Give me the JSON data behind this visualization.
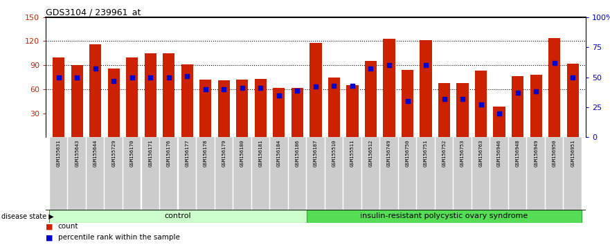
{
  "title": "GDS3104 / 239961_at",
  "samples": [
    "GSM155631",
    "GSM155643",
    "GSM155644",
    "GSM155729",
    "GSM156170",
    "GSM156171",
    "GSM156176",
    "GSM156177",
    "GSM156178",
    "GSM156179",
    "GSM156180",
    "GSM156181",
    "GSM156184",
    "GSM156186",
    "GSM156187",
    "GSM155510",
    "GSM155511",
    "GSM156512",
    "GSM156749",
    "GSM156750",
    "GSM156751",
    "GSM156752",
    "GSM156753",
    "GSM156763",
    "GSM156946",
    "GSM156948",
    "GSM156949",
    "GSM156950",
    "GSM156951"
  ],
  "counts": [
    100,
    90,
    116,
    86,
    100,
    105,
    105,
    91,
    72,
    71,
    72,
    73,
    62,
    62,
    118,
    75,
    65,
    95,
    123,
    84,
    121,
    68,
    68,
    83,
    38,
    76,
    78,
    124,
    92
  ],
  "percentiles": [
    50,
    50,
    57,
    47,
    50,
    50,
    50,
    51,
    40,
    40,
    41,
    41,
    35,
    39,
    42,
    43,
    43,
    57,
    60,
    30,
    60,
    32,
    32,
    27,
    20,
    37,
    38,
    62,
    50
  ],
  "control_count": 14,
  "disease_count": 15,
  "group_labels": [
    "control",
    "insulin-resistant polycystic ovary syndrome"
  ],
  "legend_label_count": "count",
  "legend_label_percentile": "percentile rank within the sample",
  "disease_state_label": "disease state",
  "bar_color": "#cc2200",
  "percentile_color": "#0000cc",
  "left_axis_color": "#cc2200",
  "right_axis_color": "#0000cc",
  "ylim_left": [
    0,
    150
  ],
  "ylim_right": [
    0,
    100
  ],
  "left_yticks": [
    30,
    60,
    90,
    120,
    150
  ],
  "right_yticks": [
    0,
    25,
    50,
    75,
    100
  ],
  "right_yticklabels": [
    "0",
    "25",
    "50",
    "75",
    "100%"
  ],
  "grid_values": [
    60,
    90,
    120
  ],
  "control_bg": "#ccffcc",
  "disease_bg": "#55dd55"
}
